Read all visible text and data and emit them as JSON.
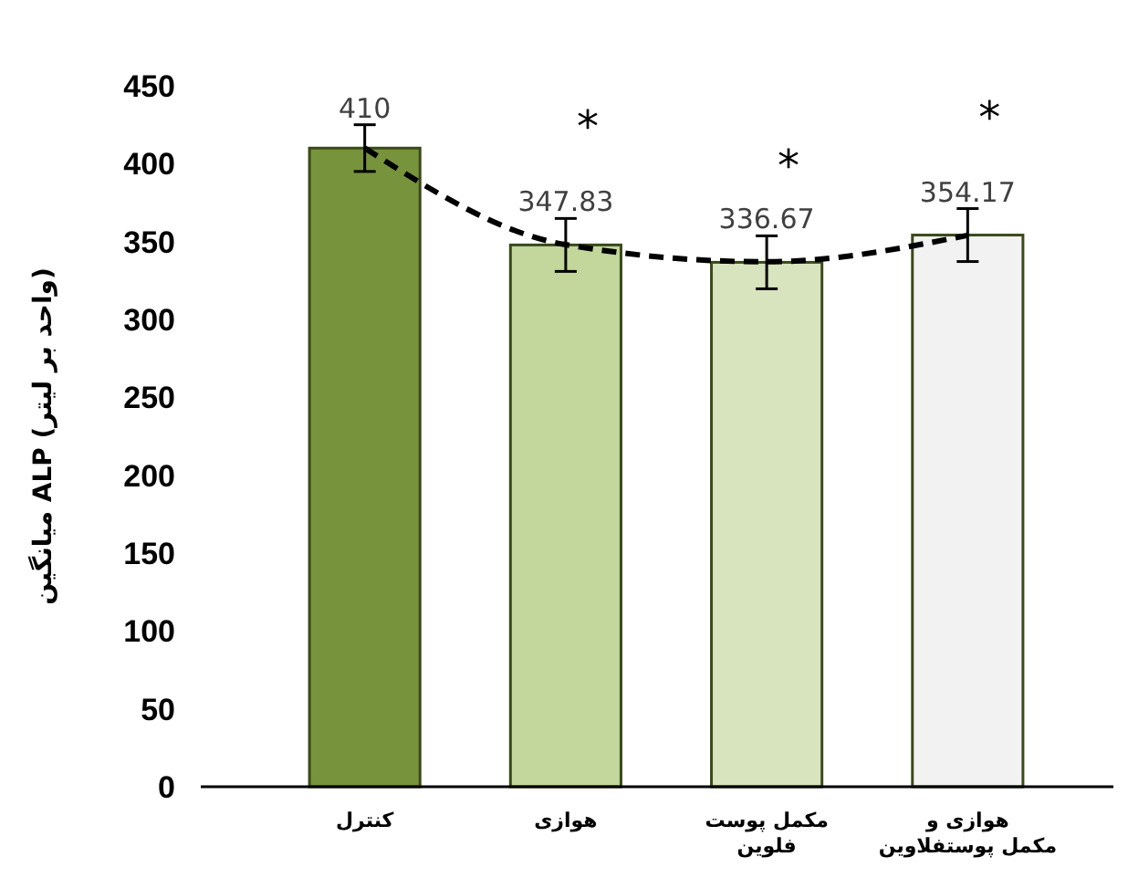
{
  "chart_data": {
    "type": "bar",
    "ylabel": "میانگین ALP (واحد بر لیتر)",
    "categories": [
      "کنترل",
      "هوازی",
      "مکمل پوست فلوین",
      "هوازی و مکمل پوستفلاوین"
    ],
    "series": [
      {
        "values": [
          410,
          347.83,
          336.67,
          354.17
        ],
        "colors": [
          "#77933c",
          "#c3d69b",
          "#d7e4bd",
          "#f2f2f2"
        ],
        "errors": [
          15,
          17,
          17,
          17
        ],
        "value_labels": [
          "410",
          "347.83",
          "336.67",
          "354.17"
        ]
      },
      {
        "type": "line",
        "color": "#000000",
        "line_style": "dashed",
        "marker": "none",
        "values": [
          410,
          348,
          337,
          354
        ]
      }
    ],
    "annotations": [
      "*",
      "*",
      "*"
    ],
    "ylim": [
      0,
      450
    ],
    "yticks": [
      0,
      50,
      100,
      150,
      200,
      250,
      300,
      350,
      400,
      450
    ]
  }
}
